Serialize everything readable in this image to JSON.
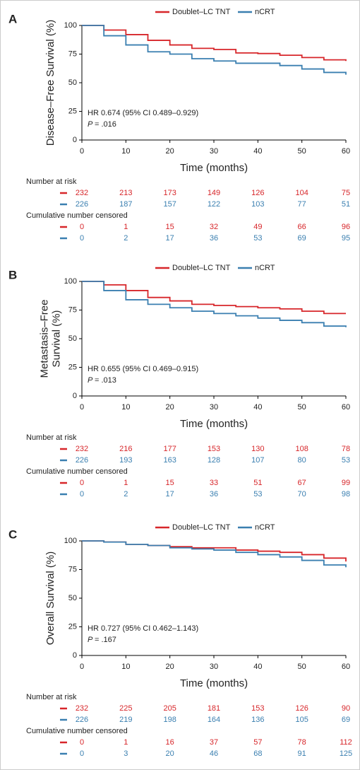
{
  "chart_data": [
    {
      "type": "line",
      "panel": "A",
      "ylabel": [
        "Disease–Free Survival (%)"
      ],
      "xlabel": "Time (months)",
      "x": [
        0,
        5,
        10,
        15,
        20,
        25,
        30,
        35,
        40,
        45,
        50,
        55,
        60
      ],
      "series": [
        {
          "name": "Doublet–LC TNT",
          "color": "#d7262a",
          "values": [
            100,
            96,
            92,
            87,
            83,
            80,
            79,
            76,
            75.5,
            74,
            72,
            70,
            69
          ]
        },
        {
          "name": "nCRT",
          "color": "#3a7fb0",
          "values": [
            100,
            91,
            83,
            77,
            75,
            71,
            69,
            67,
            67,
            65,
            62,
            59,
            57
          ]
        }
      ],
      "xlim": [
        0,
        60
      ],
      "xticks": [
        0,
        10,
        20,
        30,
        40,
        50,
        60
      ],
      "ylim": [
        0,
        100
      ],
      "yticks": [
        0,
        25,
        50,
        75,
        100
      ],
      "hr_text": "HR 0.674 (95% CI 0.489–0.929)",
      "p_label": "P",
      "p_value": "= .016",
      "risk_table": {
        "title": "Number at risk",
        "rows": [
          [
            232,
            213,
            173,
            149,
            126,
            104,
            75
          ],
          [
            226,
            187,
            157,
            122,
            103,
            77,
            51
          ]
        ]
      },
      "censored_table": {
        "title": "Cumulative number censored",
        "rows": [
          [
            0,
            1,
            15,
            32,
            49,
            66,
            96
          ],
          [
            0,
            2,
            17,
            36,
            53,
            69,
            95
          ]
        ]
      }
    },
    {
      "type": "line",
      "panel": "B",
      "ylabel": [
        "Metastasis–Free",
        "Survival (%)"
      ],
      "xlabel": "Time (months)",
      "x": [
        0,
        5,
        10,
        15,
        20,
        25,
        30,
        35,
        40,
        45,
        50,
        55,
        60
      ],
      "series": [
        {
          "name": "Doublet–LC TNT",
          "color": "#d7262a",
          "values": [
            100,
            97,
            92,
            86,
            83,
            80,
            79,
            78,
            77,
            76,
            74,
            72,
            72
          ]
        },
        {
          "name": "nCRT",
          "color": "#3a7fb0",
          "values": [
            100,
            92,
            84,
            80,
            77,
            74,
            72,
            70,
            68,
            66,
            64,
            61,
            60
          ]
        }
      ],
      "xlim": [
        0,
        60
      ],
      "xticks": [
        0,
        10,
        20,
        30,
        40,
        50,
        60
      ],
      "ylim": [
        0,
        100
      ],
      "yticks": [
        0,
        25,
        50,
        75,
        100
      ],
      "hr_text": "HR 0.655 (95% CI 0.469–0.915)",
      "p_label": "P",
      "p_value": "= .013",
      "risk_table": {
        "title": "Number at risk",
        "rows": [
          [
            232,
            216,
            177,
            153,
            130,
            108,
            78
          ],
          [
            226,
            193,
            163,
            128,
            107,
            80,
            53
          ]
        ]
      },
      "censored_table": {
        "title": "Cumulative number censored",
        "rows": [
          [
            0,
            1,
            15,
            33,
            51,
            67,
            99
          ],
          [
            0,
            2,
            17,
            36,
            53,
            70,
            98
          ]
        ]
      }
    },
    {
      "type": "line",
      "panel": "C",
      "ylabel": [
        "Overall Survival (%)"
      ],
      "xlabel": "Time (months)",
      "x": [
        0,
        5,
        10,
        15,
        20,
        25,
        30,
        35,
        40,
        45,
        50,
        55,
        60
      ],
      "series": [
        {
          "name": "Doublet–LC TNT",
          "color": "#d7262a",
          "values": [
            100,
            99,
            97,
            96,
            95,
            94,
            94,
            92,
            91,
            90,
            88,
            85,
            82
          ]
        },
        {
          "name": "nCRT",
          "color": "#3a7fb0",
          "values": [
            100,
            99,
            97,
            96,
            94,
            93,
            92,
            90,
            88,
            86,
            83,
            79,
            77
          ]
        }
      ],
      "xlim": [
        0,
        60
      ],
      "xticks": [
        0,
        10,
        20,
        30,
        40,
        50,
        60
      ],
      "ylim": [
        0,
        100
      ],
      "yticks": [
        0,
        25,
        50,
        75,
        100
      ],
      "hr_text": "HR 0.727 (95% CI 0.462–1.143)",
      "p_label": "P",
      "p_value": "= .167",
      "risk_table": {
        "title": "Number at risk",
        "rows": [
          [
            232,
            225,
            205,
            181,
            153,
            126,
            90
          ],
          [
            226,
            219,
            198,
            164,
            136,
            105,
            69
          ]
        ]
      },
      "censored_table": {
        "title": "Cumulative number censored",
        "rows": [
          [
            0,
            1,
            16,
            37,
            57,
            78,
            112
          ],
          [
            0,
            3,
            20,
            46,
            68,
            91,
            125
          ]
        ]
      }
    }
  ]
}
